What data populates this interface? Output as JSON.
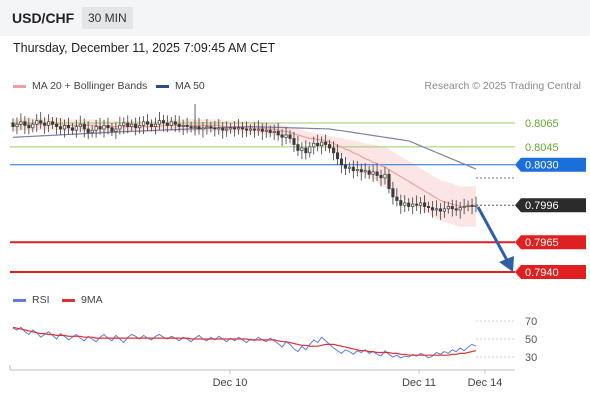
{
  "header": {
    "symbol": "USD/CHF",
    "interval": "30 MIN"
  },
  "datetime": "Thursday, December 11, 2025 7:09:45 AM CET",
  "legend": {
    "ma20": "MA 20 + Bollinger Bands",
    "ma50": "MA 50",
    "research": "Research © 2025 Trading Central",
    "rsi": "RSI",
    "ma9": "9MA"
  },
  "colors": {
    "candle": "#3b3b3b",
    "ma20": "#f0a0a0",
    "band": "#fbdcdc",
    "ma50": "#7f7faa",
    "resistance": "#9ccc65",
    "pivot": "#1a6fdb",
    "support": "#e02020",
    "current": "#2b2b2b",
    "arrow": "#2e5fa8",
    "rsi": "#5b7ee0",
    "rsi_ma": "#e03030"
  },
  "chart_data": [
    {
      "type": "candlestick",
      "title": "USD/CHF",
      "timeframe": "30 MIN",
      "x_ticks": [
        "Dec 10",
        "Dec 11",
        "Dec 14"
      ],
      "ylim": [
        0.793,
        0.809
      ],
      "levels": [
        {
          "value": 0.8065,
          "label": "0.8065",
          "kind": "resistance"
        },
        {
          "value": 0.8045,
          "label": "0.8045",
          "kind": "resistance"
        },
        {
          "value": 0.803,
          "label": "0.8030",
          "kind": "pivot"
        },
        {
          "value": 0.7996,
          "label": "0.7996",
          "kind": "current"
        },
        {
          "value": 0.7965,
          "label": "0.7965",
          "kind": "support"
        },
        {
          "value": 0.794,
          "label": "0.7940",
          "kind": "support"
        }
      ],
      "close": [
        0.8062,
        0.8064,
        0.8066,
        0.8063,
        0.8061,
        0.8064,
        0.8067,
        0.8065,
        0.8063,
        0.8066,
        0.8064,
        0.8062,
        0.806,
        0.8063,
        0.8061,
        0.8059,
        0.8062,
        0.8064,
        0.806,
        0.8057,
        0.8059,
        0.8062,
        0.806,
        0.8063,
        0.8061,
        0.8058,
        0.806,
        0.8063,
        0.8065,
        0.8062,
        0.8064,
        0.8061,
        0.8063,
        0.8066,
        0.8064,
        0.8062,
        0.8064,
        0.8067,
        0.8065,
        0.8063,
        0.8066,
        0.8064,
        0.8062,
        0.8063,
        0.8062,
        0.8061,
        0.8062,
        0.806,
        0.8061,
        0.8062,
        0.8061,
        0.806,
        0.8061,
        0.8059,
        0.806,
        0.8061,
        0.806,
        0.8061,
        0.806,
        0.8059,
        0.806,
        0.8059,
        0.806,
        0.8058,
        0.8059,
        0.8057,
        0.8058,
        0.8055,
        0.8053,
        0.8055,
        0.8052,
        0.8047,
        0.8042,
        0.8044,
        0.804,
        0.8045,
        0.8048,
        0.8046,
        0.8049,
        0.8047,
        0.8044,
        0.804,
        0.8035,
        0.803,
        0.8027,
        0.8028,
        0.8025,
        0.8026,
        0.8024,
        0.8025,
        0.8022,
        0.8024,
        0.8021,
        0.8019,
        0.8022,
        0.801,
        0.8003,
        0.8,
        0.7996,
        0.7998,
        0.7995,
        0.7997,
        0.7996,
        0.7998,
        0.7995,
        0.7994,
        0.7992,
        0.7993,
        0.7991,
        0.7993,
        0.7995,
        0.7993,
        0.7992,
        0.7994,
        0.7995,
        0.7996,
        0.7995,
        0.7996
      ],
      "ma20": [
        0.8063,
        0.8063,
        0.8064,
        0.8064,
        0.8064,
        0.8064,
        0.8064,
        0.8064,
        0.8064,
        0.8064,
        0.8064,
        0.8064,
        0.8064,
        0.8063,
        0.8063,
        0.8063,
        0.8063,
        0.8063,
        0.8063,
        0.8063,
        0.8063,
        0.8063,
        0.8062,
        0.8062,
        0.8062,
        0.8062,
        0.8062,
        0.8062,
        0.8062,
        0.8062,
        0.8062,
        0.8062,
        0.8062,
        0.8062,
        0.8062,
        0.8062,
        0.8062,
        0.8062,
        0.8063,
        0.8063,
        0.8063,
        0.8063,
        0.8063,
        0.8063,
        0.8063,
        0.8063,
        0.8063,
        0.8063,
        0.8063,
        0.8063,
        0.8063,
        0.8063,
        0.8063,
        0.8062,
        0.8062,
        0.8062,
        0.8062,
        0.8062,
        0.8061,
        0.8061,
        0.8061,
        0.8061,
        0.8061,
        0.8061,
        0.806,
        0.806,
        0.806,
        0.8059,
        0.8058,
        0.8058,
        0.8057,
        0.8056,
        0.8055,
        0.8054,
        0.8053,
        0.8052,
        0.8052,
        0.8051,
        0.8051,
        0.805,
        0.8049,
        0.8048,
        0.8046,
        0.8045,
        0.8043,
        0.8042,
        0.804,
        0.8039,
        0.8037,
        0.8035,
        0.8034,
        0.8032,
        0.8031,
        0.8029,
        0.8028,
        0.8026,
        0.8024,
        0.8022,
        0.802,
        0.8018,
        0.8016,
        0.8014,
        0.8012,
        0.801,
        0.8008,
        0.8006,
        0.8004,
        0.8002,
        0.8,
        0.7999,
        0.7998,
        0.7997,
        0.7996,
        0.7995,
        0.7995,
        0.7995,
        0.7995,
        0.7995
      ],
      "ma50_anchors": [
        [
          0,
          0.8053
        ],
        [
          30,
          0.8058
        ],
        [
          60,
          0.8062
        ],
        [
          80,
          0.806
        ],
        [
          100,
          0.805
        ],
        [
          118,
          0.8025
        ]
      ]
    },
    {
      "type": "line",
      "title": "RSI",
      "ylim": [
        20,
        80
      ],
      "y_ticks": [
        70,
        50,
        30
      ],
      "series": [
        {
          "name": "RSI",
          "values": [
            62,
            60,
            63,
            58,
            55,
            60,
            57,
            52,
            55,
            58,
            54,
            50,
            56,
            53,
            49,
            52,
            55,
            51,
            48,
            53,
            50,
            47,
            52,
            55,
            51,
            48,
            54,
            50,
            46,
            52,
            55,
            53,
            50,
            54,
            51,
            49,
            53,
            55,
            52,
            50,
            53,
            51,
            48,
            52,
            50,
            47,
            51,
            54,
            50,
            48,
            52,
            49,
            53,
            50,
            47,
            51,
            48,
            52,
            49,
            46,
            50,
            48,
            52,
            49,
            47,
            51,
            48,
            45,
            41,
            47,
            44,
            39,
            36,
            42,
            38,
            44,
            49,
            46,
            52,
            48,
            44,
            40,
            37,
            34,
            38,
            36,
            33,
            37,
            35,
            38,
            34,
            36,
            33,
            31,
            37,
            33,
            30,
            32,
            29,
            31,
            30,
            33,
            31,
            34,
            32,
            29,
            31,
            35,
            33,
            36,
            34,
            38,
            36,
            40,
            37,
            41,
            44,
            42
          ]
        },
        {
          "name": "9MA",
          "values": [
            63,
            62,
            61,
            60,
            59,
            58,
            57,
            56,
            56,
            55,
            55,
            54,
            54,
            54,
            53,
            53,
            53,
            53,
            52,
            52,
            52,
            51,
            51,
            51,
            51,
            51,
            51,
            51,
            51,
            51,
            51,
            51,
            51,
            51,
            51,
            51,
            51,
            51,
            51,
            51,
            51,
            51,
            51,
            51,
            51,
            50,
            50,
            50,
            50,
            50,
            50,
            50,
            50,
            50,
            50,
            50,
            50,
            50,
            50,
            50,
            49,
            49,
            49,
            49,
            49,
            49,
            49,
            48,
            47,
            47,
            46,
            45,
            44,
            43,
            43,
            42,
            42,
            42,
            43,
            44,
            44,
            44,
            43,
            42,
            41,
            40,
            39,
            38,
            37,
            37,
            36,
            36,
            35,
            35,
            35,
            35,
            34,
            34,
            33,
            33,
            32,
            32,
            32,
            32,
            32,
            32,
            32,
            32,
            32,
            32,
            32,
            33,
            33,
            34,
            34,
            35,
            36,
            37
          ]
        }
      ]
    }
  ]
}
